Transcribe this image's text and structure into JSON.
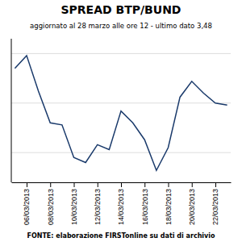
{
  "chart_data": {
    "type": "line",
    "title": "SPREAD  BTP/BUND",
    "subtitle": "aggiornato al 28 marzo alle ore 12 - ultimo dato 3,48",
    "footer": "FONTE: elaborazione FIRSTonline su dati di archivio",
    "categories": [
      null,
      "06/03/2013",
      null,
      "08/03/2013",
      null,
      "10/03/2013",
      null,
      "12/03/2013",
      null,
      "14/03/2013",
      null,
      "16/03/2013",
      null,
      "18/03/2013",
      null,
      "20/03/2013",
      null,
      "22/03/2013",
      null
    ],
    "values": [
      3.85,
      3.98,
      3.62,
      3.3,
      3.28,
      2.95,
      2.9,
      3.08,
      3.03,
      3.42,
      3.3,
      3.13,
      2.82,
      3.05,
      3.56,
      3.72,
      3.6,
      3.5,
      3.48
    ],
    "color": "#1a3a6b",
    "ylim": [
      2.7,
      4.15
    ],
    "yticks": [
      3,
      3.5,
      4
    ],
    "grid": true,
    "tick_labels": "x"
  }
}
